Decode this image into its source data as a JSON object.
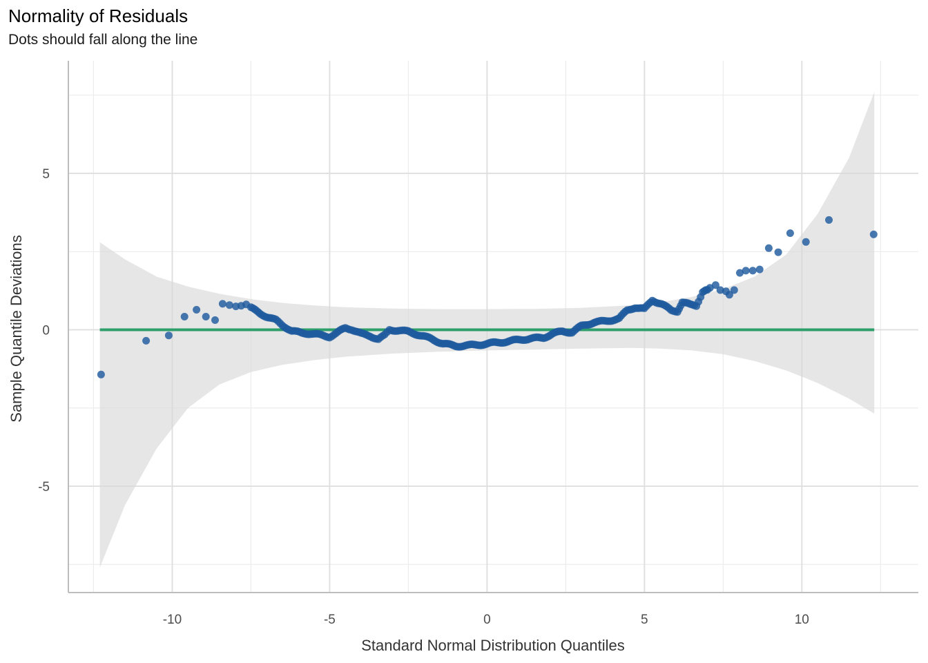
{
  "chart_data": {
    "type": "scatter",
    "title": "Normality of Residuals",
    "subtitle": "Dots should fall along the line",
    "xlabel": "Standard Normal Distribution Quantiles",
    "ylabel": "Sample Quantile Deviations",
    "xlim": [
      -13.3,
      13.7
    ],
    "ylim": [
      -8.4,
      8.6
    ],
    "x_ticks": [
      -10,
      -5,
      0,
      5,
      10
    ],
    "x_tick_labels": [
      "-10",
      "-5",
      "0",
      "5",
      "10"
    ],
    "y_ticks": [
      -5,
      0,
      5
    ],
    "y_tick_labels": [
      "-5",
      "0",
      "5"
    ],
    "x_minor_ticks": [
      -12.5,
      -7.5,
      -2.5,
      2.5,
      7.5,
      12.5
    ],
    "y_minor_ticks": [
      -7.5,
      -2.5,
      2.5,
      7.5
    ],
    "grid": true,
    "colors": {
      "points": "#1f5a9e",
      "reference_line": "#2e9e6b",
      "confidence_band": "#e5e5e5",
      "grid_major": "#e0e0e0",
      "grid_minor": "#ececec",
      "axis_line": "#bdbdbd"
    },
    "reference_line": {
      "name": "reference",
      "y": 0,
      "x_range": [
        -12.3,
        12.3
      ]
    },
    "confidence_band": {
      "x": [
        -12.3,
        -11.5,
        -10.5,
        -9.5,
        -8.5,
        -7.5,
        -6.5,
        -5.5,
        -4.5,
        -3.0,
        -1.5,
        0,
        1.5,
        3.0,
        4.5,
        5.5,
        6.5,
        7.5,
        8.5,
        9.5,
        10.5,
        11.5,
        12.3
      ],
      "upper": [
        2.8,
        2.25,
        1.7,
        1.38,
        1.15,
        0.98,
        0.86,
        0.78,
        0.72,
        0.68,
        0.66,
        0.66,
        0.67,
        0.7,
        0.78,
        0.88,
        1.05,
        1.3,
        1.7,
        2.4,
        3.7,
        5.5,
        7.6
      ],
      "lower": [
        -7.6,
        -5.6,
        -3.8,
        -2.5,
        -1.75,
        -1.35,
        -1.12,
        -0.97,
        -0.86,
        -0.76,
        -0.7,
        -0.66,
        -0.63,
        -0.6,
        -0.58,
        -0.6,
        -0.66,
        -0.78,
        -1.0,
        -1.3,
        -1.7,
        -2.2,
        -2.68
      ]
    },
    "series": [
      {
        "name": "sparse_residuals",
        "points": [
          [
            -12.26,
            -1.43
          ],
          [
            -10.83,
            -0.35
          ],
          [
            -10.11,
            -0.18
          ],
          [
            -9.61,
            0.42
          ],
          [
            -9.23,
            0.64
          ],
          [
            -8.93,
            0.42
          ],
          [
            -8.64,
            0.31
          ],
          [
            -8.4,
            0.83
          ],
          [
            -8.18,
            0.79
          ],
          [
            -7.98,
            0.75
          ],
          [
            -7.81,
            0.77
          ],
          [
            -7.65,
            0.81
          ],
          [
            7.08,
            1.34
          ],
          [
            7.26,
            1.43
          ],
          [
            7.41,
            1.27
          ],
          [
            7.59,
            1.23
          ],
          [
            7.7,
            1.12
          ],
          [
            7.85,
            1.27
          ],
          [
            8.03,
            1.82
          ],
          [
            8.22,
            1.89
          ],
          [
            8.44,
            1.89
          ],
          [
            8.66,
            1.93
          ],
          [
            8.95,
            2.61
          ],
          [
            9.25,
            2.48
          ],
          [
            9.63,
            3.09
          ],
          [
            10.13,
            2.81
          ],
          [
            10.86,
            3.51
          ],
          [
            12.28,
            3.05
          ]
        ]
      },
      {
        "name": "dense_residuals_trend",
        "step": 0.06,
        "points": [
          [
            -7.5,
            0.7
          ],
          [
            -7.2,
            0.52
          ],
          [
            -6.95,
            0.4
          ],
          [
            -6.7,
            0.3
          ],
          [
            -6.5,
            0.15
          ],
          [
            -6.2,
            -0.04
          ],
          [
            -5.9,
            -0.1
          ],
          [
            -5.6,
            -0.12
          ],
          [
            -5.3,
            -0.17
          ],
          [
            -5.0,
            -0.22
          ],
          [
            -4.8,
            -0.12
          ],
          [
            -4.5,
            0.06
          ],
          [
            -4.3,
            0.02
          ],
          [
            -4.0,
            -0.13
          ],
          [
            -3.7,
            -0.2
          ],
          [
            -3.45,
            -0.3
          ],
          [
            -3.25,
            -0.18
          ],
          [
            -3.1,
            0.0
          ],
          [
            -2.8,
            -0.02
          ],
          [
            -2.5,
            -0.06
          ],
          [
            -2.2,
            -0.15
          ],
          [
            -1.8,
            -0.28
          ],
          [
            -1.4,
            -0.44
          ],
          [
            -1.0,
            -0.52
          ],
          [
            -0.6,
            -0.5
          ],
          [
            -0.2,
            -0.47
          ],
          [
            0.2,
            -0.42
          ],
          [
            0.6,
            -0.38
          ],
          [
            1.0,
            -0.32
          ],
          [
            1.4,
            -0.28
          ],
          [
            1.8,
            -0.25
          ],
          [
            2.1,
            -0.12
          ],
          [
            2.4,
            -0.05
          ],
          [
            2.7,
            -0.08
          ],
          [
            3.0,
            0.12
          ],
          [
            3.4,
            0.24
          ],
          [
            3.8,
            0.28
          ],
          [
            4.2,
            0.36
          ],
          [
            4.45,
            0.62
          ],
          [
            4.7,
            0.72
          ],
          [
            5.0,
            0.66
          ],
          [
            5.25,
            0.95
          ],
          [
            5.55,
            0.82
          ],
          [
            5.85,
            0.62
          ],
          [
            6.05,
            0.6
          ],
          [
            6.2,
            0.88
          ],
          [
            6.45,
            0.8
          ],
          [
            6.65,
            0.78
          ],
          [
            6.85,
            1.22
          ],
          [
            7.0,
            1.28
          ]
        ]
      }
    ]
  }
}
